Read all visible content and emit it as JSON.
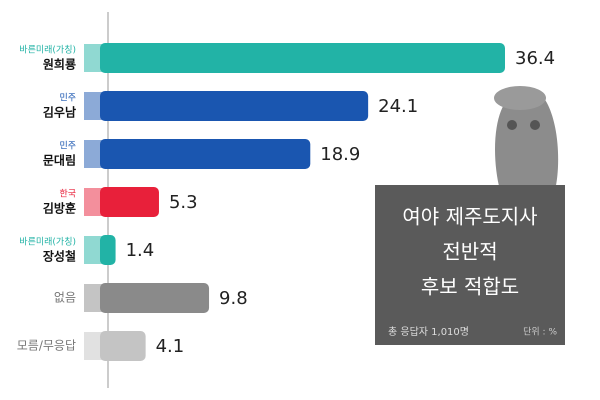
{
  "chart_data": {
    "type": "bar",
    "orientation": "horizontal",
    "title": [
      "여야 제주도지사",
      "전반적",
      "후보 적합도"
    ],
    "respondents": "총 응답자 1,010명",
    "unit": "단위 : %",
    "parties": [
      "바른미래(가칭)",
      "민주",
      "민주",
      "한국",
      "바른미래(가칭)",
      null,
      null
    ],
    "categories": [
      "원희룡",
      "김우남",
      "문대림",
      "김방훈",
      "장성철",
      "없음",
      "모름/무응답"
    ],
    "values": [
      36.4,
      24.1,
      18.9,
      5.3,
      1.4,
      9.8,
      4.1
    ],
    "colors": [
      "#22b3a6",
      "#1a56b0",
      "#1a56b0",
      "#e8203a",
      "#22b3a6",
      "#8a8a8a",
      "#c4c4c4"
    ]
  }
}
